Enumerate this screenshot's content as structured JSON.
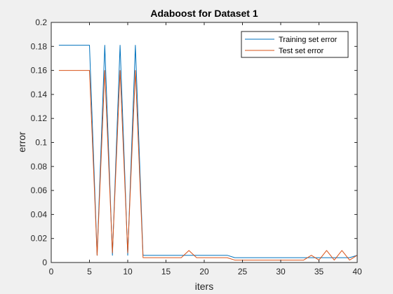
{
  "chart_data": {
    "type": "line",
    "title": "Adaboost for Dataset 1",
    "xlabel": "iters",
    "ylabel": "error",
    "xlim": [
      0,
      40
    ],
    "ylim": [
      0,
      0.2
    ],
    "xticks": [
      "0",
      "5",
      "10",
      "15",
      "20",
      "25",
      "30",
      "35",
      "40"
    ],
    "yticks": [
      "0",
      "0.02",
      "0.04",
      "0.06",
      "0.08",
      "0.1",
      "0.12",
      "0.14",
      "0.16",
      "0.18",
      "0.2"
    ],
    "xtick_values": [
      0,
      5,
      10,
      15,
      20,
      25,
      30,
      35,
      40
    ],
    "ytick_values": [
      0,
      0.02,
      0.04,
      0.06,
      0.08,
      0.1,
      0.12,
      0.14,
      0.16,
      0.18,
      0.2
    ],
    "grid": false,
    "legend_position": "top-right",
    "x": [
      1,
      2,
      3,
      4,
      5,
      6,
      7,
      8,
      9,
      10,
      11,
      12,
      13,
      14,
      15,
      16,
      17,
      18,
      19,
      20,
      21,
      22,
      23,
      24,
      25,
      26,
      27,
      28,
      29,
      30,
      31,
      32,
      33,
      34,
      35,
      36,
      37,
      38,
      39,
      40
    ],
    "series": [
      {
        "name": "Training set error",
        "color": "#0072bd",
        "values": [
          0.181,
          0.181,
          0.181,
          0.181,
          0.181,
          0.006,
          0.181,
          0.006,
          0.181,
          0.006,
          0.181,
          0.006,
          0.006,
          0.006,
          0.006,
          0.006,
          0.006,
          0.006,
          0.006,
          0.006,
          0.006,
          0.006,
          0.006,
          0.004,
          0.004,
          0.004,
          0.004,
          0.004,
          0.004,
          0.004,
          0.004,
          0.004,
          0.004,
          0.004,
          0.004,
          0.004,
          0.004,
          0.004,
          0.004,
          0.006
        ]
      },
      {
        "name": "Test set error",
        "color": "#d95319",
        "values": [
          0.16,
          0.16,
          0.16,
          0.16,
          0.16,
          0.006,
          0.16,
          0.008,
          0.16,
          0.008,
          0.16,
          0.004,
          0.004,
          0.004,
          0.004,
          0.004,
          0.004,
          0.01,
          0.004,
          0.004,
          0.004,
          0.004,
          0.004,
          0.002,
          0.002,
          0.002,
          0.002,
          0.002,
          0.002,
          0.002,
          0.002,
          0.002,
          0.002,
          0.006,
          0.002,
          0.01,
          0.002,
          0.01,
          0.002,
          0.006
        ]
      }
    ]
  }
}
